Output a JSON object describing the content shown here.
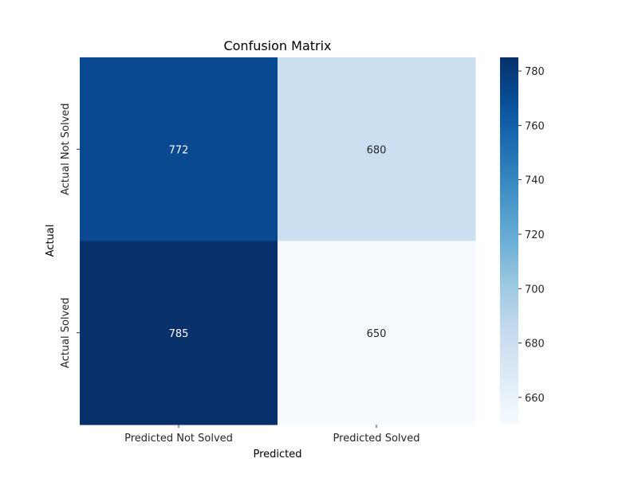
{
  "chart_data": {
    "type": "heatmap",
    "title": "Confusion Matrix",
    "xlabel": "Predicted",
    "ylabel": "Actual",
    "x_categories": [
      "Predicted Not Solved",
      "Predicted Solved"
    ],
    "y_categories": [
      "Actual Not Solved",
      "Actual Solved"
    ],
    "values": [
      [
        772,
        680
      ],
      [
        785,
        650
      ]
    ],
    "colorbar": {
      "range": [
        650,
        785
      ],
      "ticks": [
        660,
        680,
        700,
        720,
        740,
        760,
        780
      ],
      "colormap": "Blues",
      "low_color": "#f7fbff",
      "high_color": "#08306b"
    },
    "grid": false
  }
}
